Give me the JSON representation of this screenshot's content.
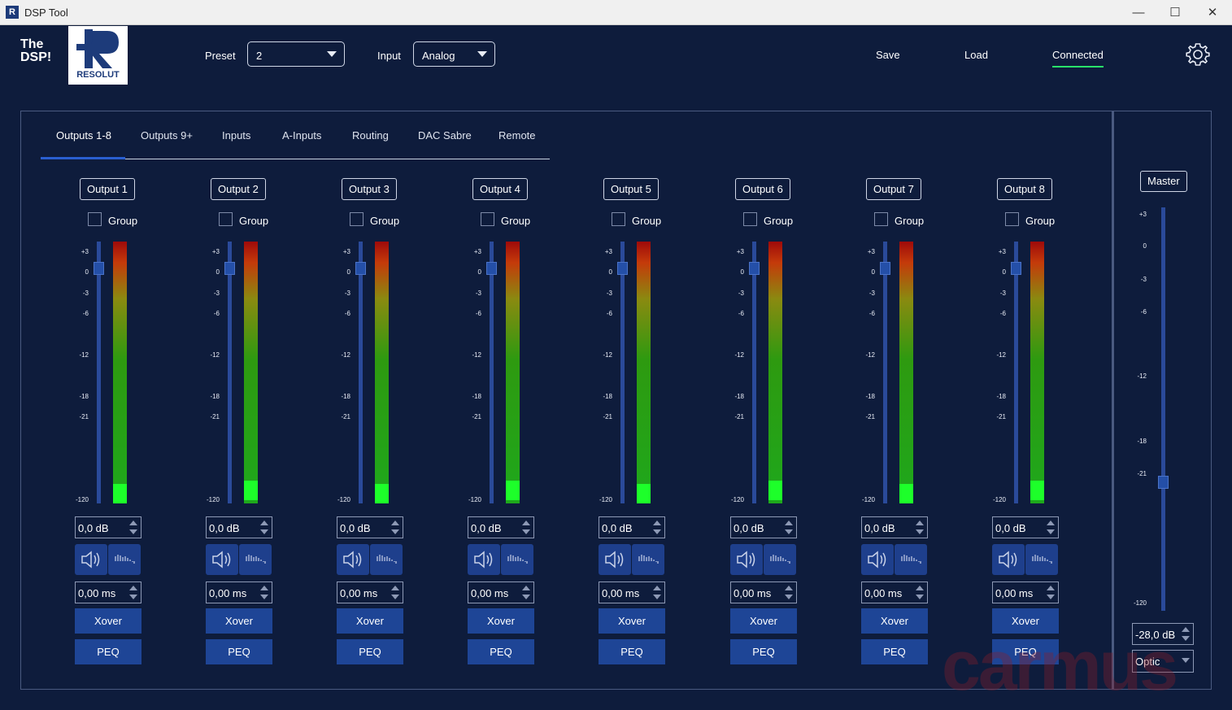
{
  "window": {
    "title": "DSP Tool",
    "minimize": "—",
    "maximize": "☐",
    "close": "✕"
  },
  "header": {
    "brand": "The DSP!",
    "logo_text": "RESOLUT",
    "preset_label": "Preset",
    "preset_value": "2",
    "input_label": "Input",
    "input_value": "Analog",
    "save": "Save",
    "load": "Load",
    "connected": "Connected"
  },
  "tabs": [
    "Outputs 1-8",
    "Outputs 9+",
    "Inputs",
    "A-Inputs",
    "Routing",
    "DAC Sabre",
    "Remote"
  ],
  "active_tab": "Outputs 1-8",
  "scale_labels": [
    "+3",
    "0",
    "-3",
    "-6",
    "-12",
    "-18",
    "-21",
    "-120"
  ],
  "group_label": "Group",
  "channels": [
    {
      "name": "Output 1",
      "gain": "0,0 dB",
      "delay": "0,00 ms",
      "xover": "Xover",
      "peq": "PEQ",
      "group": false
    },
    {
      "name": "Output 2",
      "gain": "0,0 dB",
      "delay": "0,00 ms",
      "xover": "Xover",
      "peq": "PEQ",
      "group": false
    },
    {
      "name": "Output 3",
      "gain": "0,0 dB",
      "delay": "0,00 ms",
      "xover": "Xover",
      "peq": "PEQ",
      "group": false
    },
    {
      "name": "Output 4",
      "gain": "0,0 dB",
      "delay": "0,00 ms",
      "xover": "Xover",
      "peq": "PEQ",
      "group": false
    },
    {
      "name": "Output 5",
      "gain": "0,0 dB",
      "delay": "0,00 ms",
      "xover": "Xover",
      "peq": "PEQ",
      "group": false
    },
    {
      "name": "Output 6",
      "gain": "0,0 dB",
      "delay": "0,00 ms",
      "xover": "Xover",
      "peq": "PEQ",
      "group": false
    },
    {
      "name": "Output 7",
      "gain": "0,0 dB",
      "delay": "0,00 ms",
      "xover": "Xover",
      "peq": "PEQ",
      "group": false
    },
    {
      "name": "Output 8",
      "gain": "0,0 dB",
      "delay": "0,00 ms",
      "xover": "Xover",
      "peq": "PEQ",
      "group": false
    }
  ],
  "master": {
    "label": "Master",
    "scale_labels": [
      "+3",
      "0",
      "-3",
      "-6",
      "-12",
      "-18",
      "-21",
      "-120"
    ],
    "gain": "-28,0 dB",
    "source": "Optic"
  },
  "colors": {
    "background": "#0e1c3c",
    "button": "#1e4596",
    "accent_connected": "#29e36a",
    "tab_indicator": "#2a5fd0"
  },
  "watermark": "carmus"
}
